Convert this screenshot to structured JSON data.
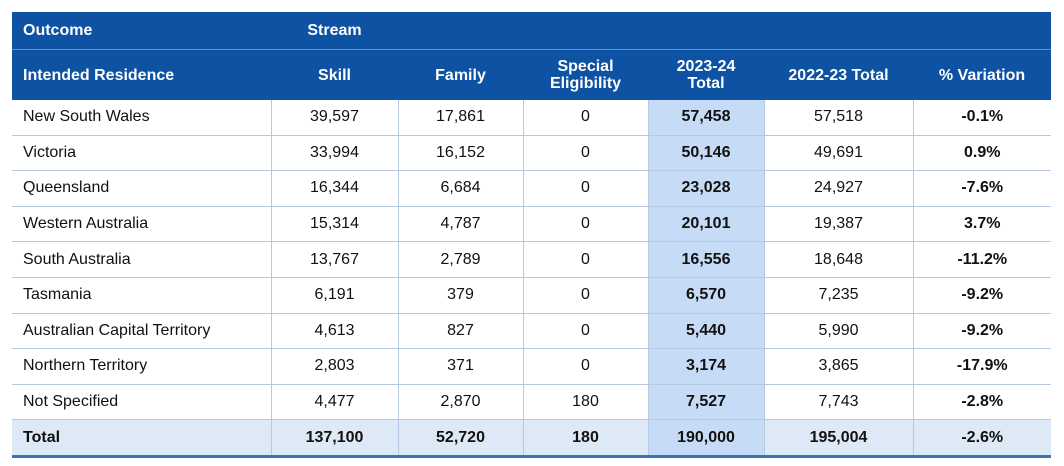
{
  "header": {
    "outcome_label": "Outcome",
    "stream_label": "Stream",
    "columns": [
      "Intended Residence",
      "Skill",
      "Family",
      "Special Eligibility",
      "2023-24 Total",
      "2022-23 Total",
      "% Variation"
    ]
  },
  "rows": [
    [
      "New South Wales",
      "39,597",
      "17,861",
      "0",
      "57,458",
      "57,518",
      "-0.1%"
    ],
    [
      "Victoria",
      "33,994",
      "16,152",
      "0",
      "50,146",
      "49,691",
      "0.9%"
    ],
    [
      "Queensland",
      "16,344",
      "6,684",
      "0",
      "23,028",
      "24,927",
      "-7.6%"
    ],
    [
      "Western Australia",
      "15,314",
      "4,787",
      "0",
      "20,101",
      "19,387",
      "3.7%"
    ],
    [
      "South Australia",
      "13,767",
      "2,789",
      "0",
      "16,556",
      "18,648",
      "-11.2%"
    ],
    [
      "Tasmania",
      "6,191",
      "379",
      "0",
      "6,570",
      "7,235",
      "-9.2%"
    ],
    [
      "Australian Capital Territory",
      "4,613",
      "827",
      "0",
      "5,440",
      "5,990",
      "-9.2%"
    ],
    [
      "Northern Territory",
      "2,803",
      "371",
      "0",
      "3,174",
      "3,865",
      "-17.9%"
    ],
    [
      "Not Specified",
      "4,477",
      "2,870",
      "180",
      "7,527",
      "7,743",
      "-2.8%"
    ]
  ],
  "total": [
    "Total",
    "137,100",
    "52,720",
    "180",
    "190,000",
    "195,004",
    "-2.6%"
  ],
  "colors": {
    "header_bg": "#0d52a3",
    "highlight_col": "#c6dcf6",
    "total_row_bg": "#dde9f6"
  }
}
